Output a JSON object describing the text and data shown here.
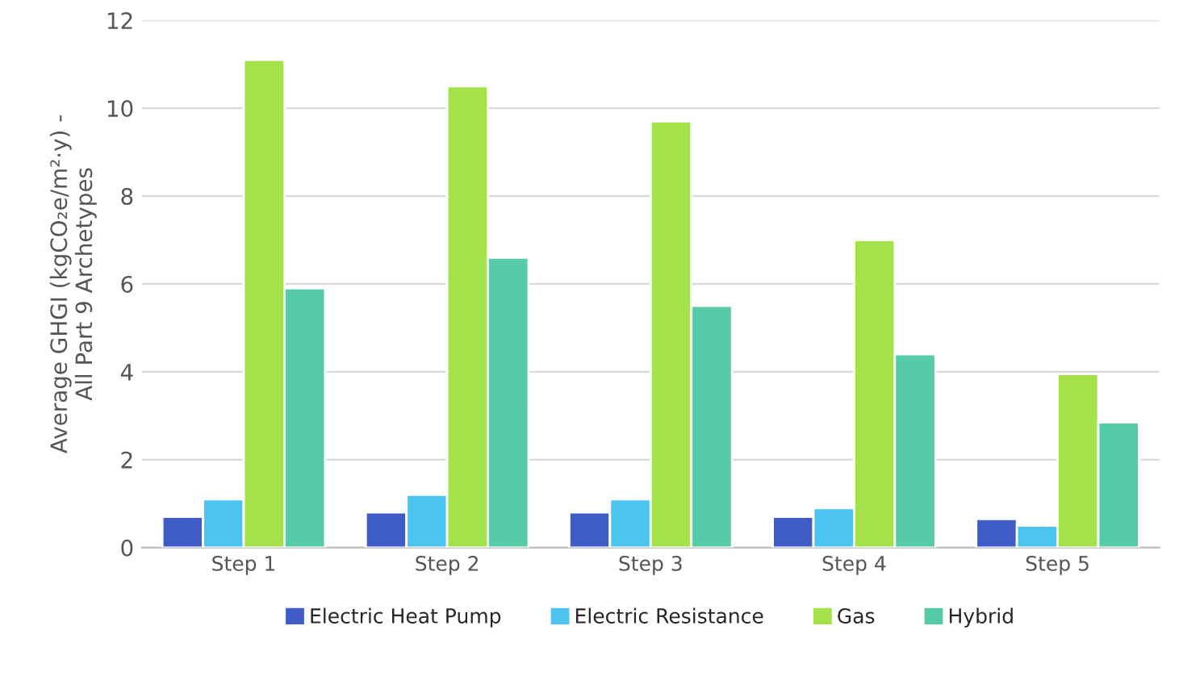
{
  "chart_data": {
    "type": "bar",
    "ylabel": "Average GHGI (kgCO₂e/m²·y) -\nAll Part 9 Archetypes",
    "categories": [
      "Step 1",
      "Step 2",
      "Step 3",
      "Step 4",
      "Step 5"
    ],
    "series": [
      {
        "name": "Electric Heat Pump",
        "color": "#3f5cc6",
        "values": [
          0.7,
          0.8,
          0.8,
          0.7,
          0.65
        ]
      },
      {
        "name": "Electric Resistance",
        "color": "#4cc4f0",
        "values": [
          1.1,
          1.2,
          1.1,
          0.9,
          0.5
        ]
      },
      {
        "name": "Gas",
        "color": "#a3e24b",
        "values": [
          11.1,
          10.5,
          9.7,
          7.0,
          3.95
        ]
      },
      {
        "name": "Hybrid",
        "color": "#55cba8",
        "values": [
          5.9,
          6.6,
          5.5,
          4.4,
          2.85
        ]
      }
    ],
    "ylim": [
      0,
      12
    ],
    "yticks": [
      0,
      2,
      4,
      6,
      8,
      10,
      12
    ],
    "grid": "y",
    "legend": "bottom"
  }
}
